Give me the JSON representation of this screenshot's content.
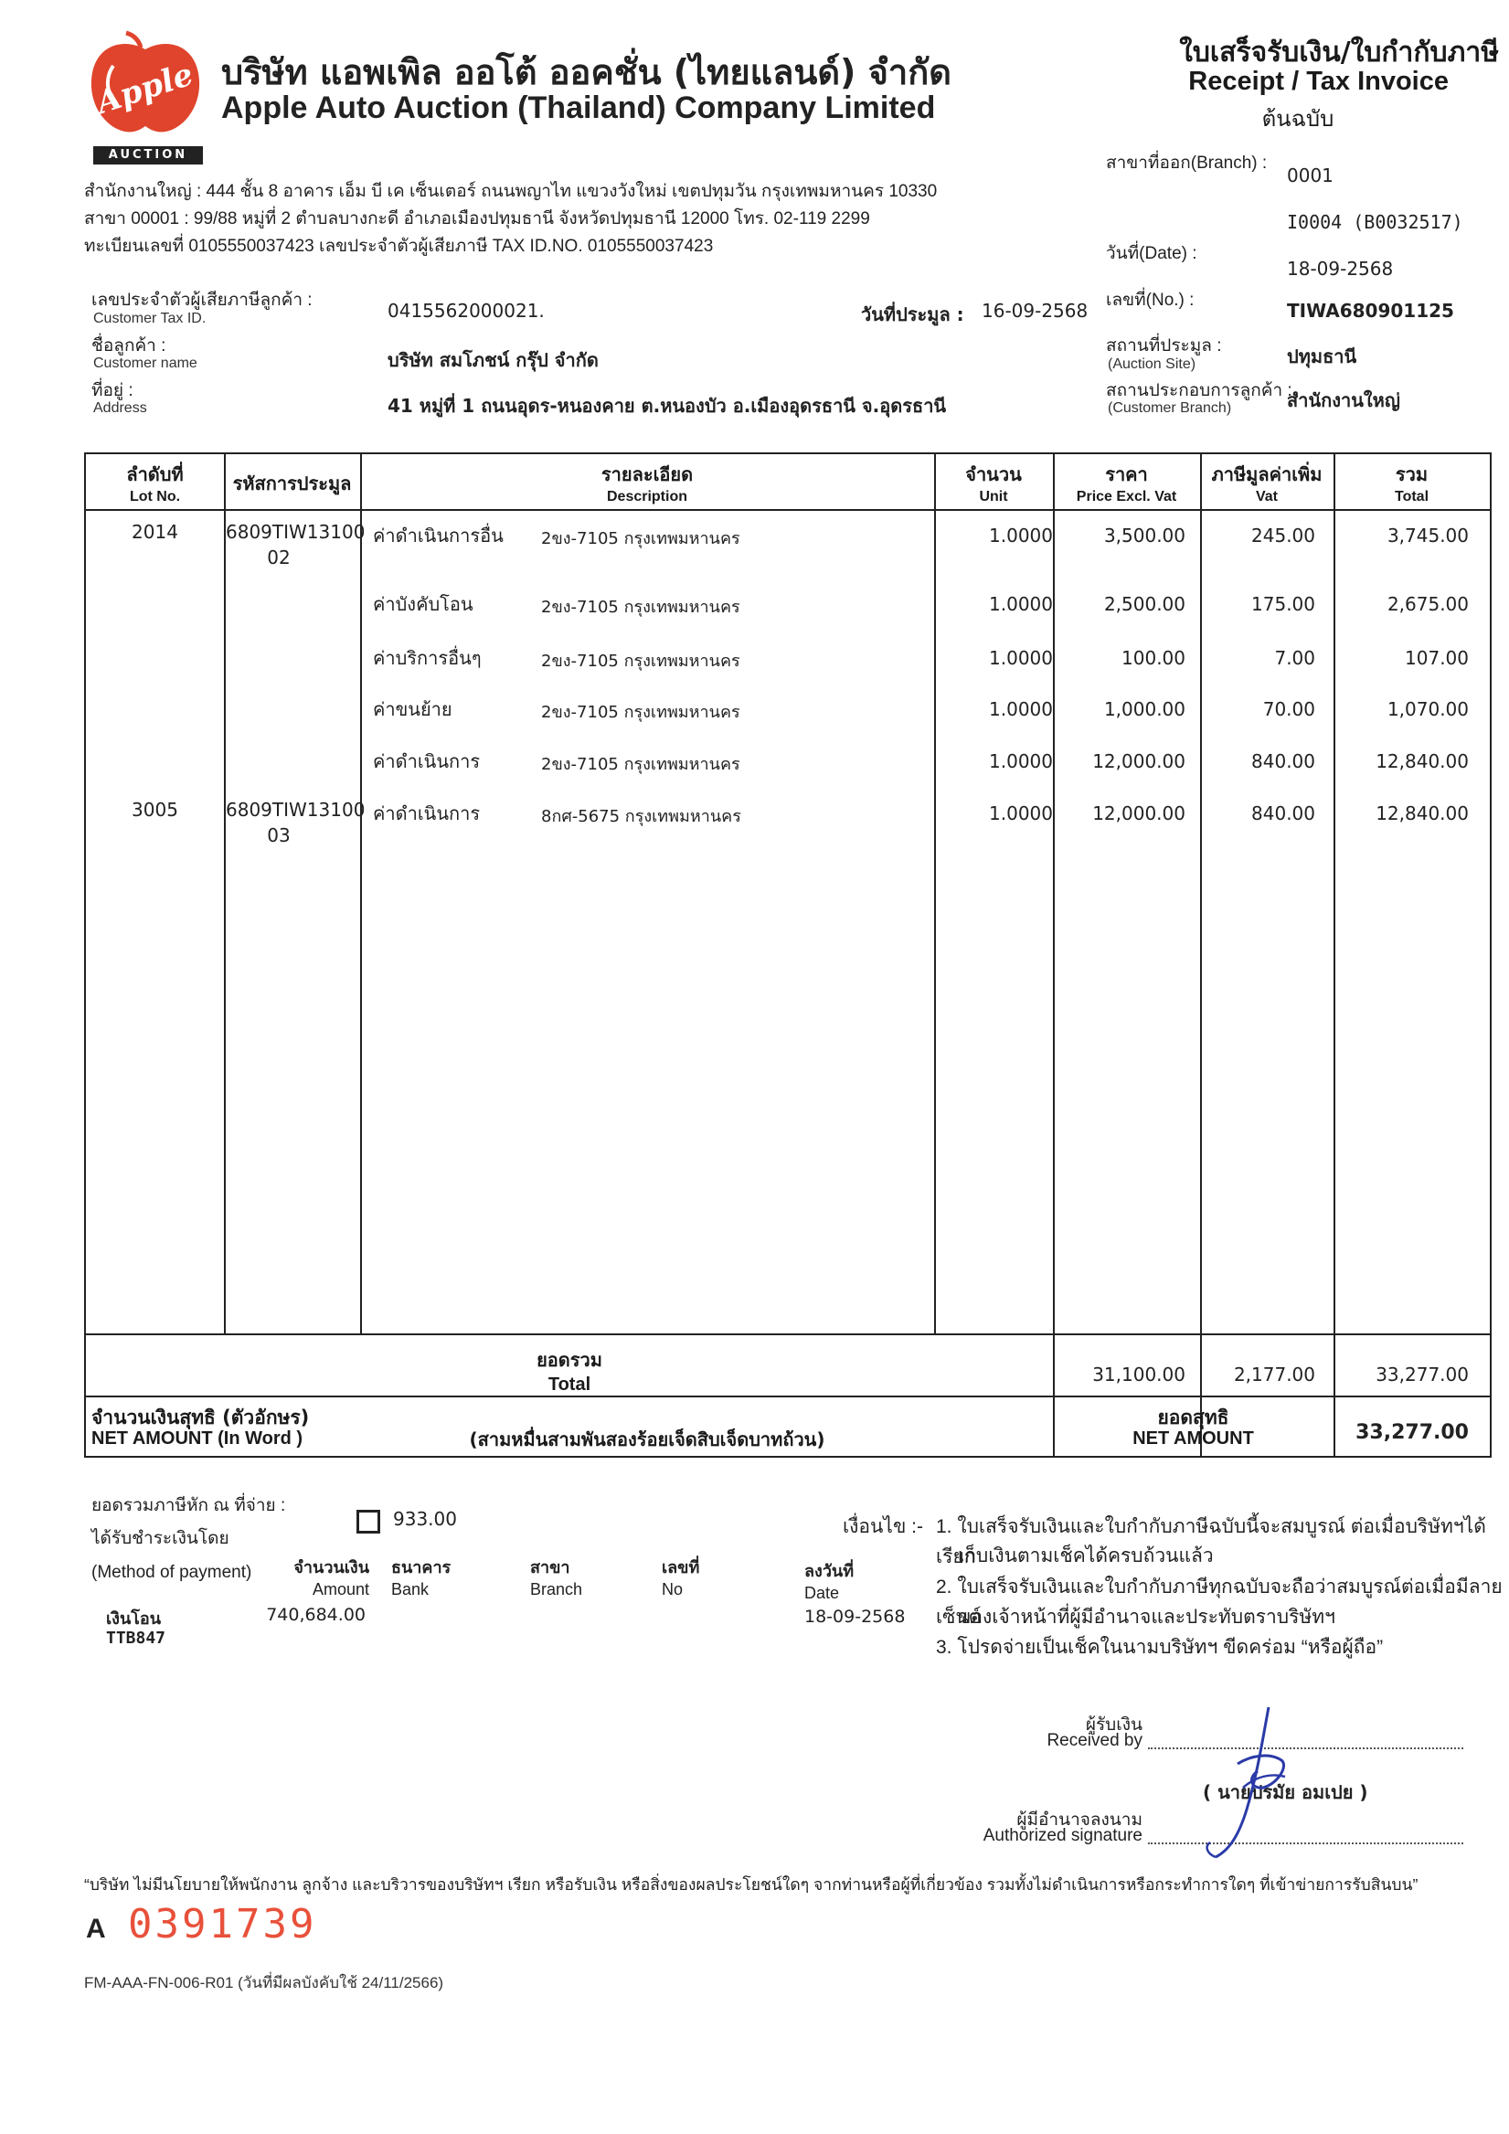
{
  "company": {
    "name_th": "บริษัท แอพเพิล ออโต้ ออคชั่น (ไทยแลนด์) จำกัด",
    "name_en": "Apple Auto Auction (Thailand) Company Limited",
    "logo_text": "Apple",
    "badge_text": "AUCTION",
    "head_office": "สำนักงานใหญ่ : 444 ชั้น 8 อาคาร เอ็ม บี เค เซ็นเตอร์ ถนนพญาไท แขวงวังใหม่ เขตปทุมวัน กรุงเทพมหานคร 10330",
    "branch": "สาขา 00001   : 99/88 หมู่ที่ 2 ตำบลบางกะดี อำเภอเมืองปทุมธานี จังหวัดปทุมธานี 12000 โทร. 02-119 2299",
    "registration": "ทะเบียนเลขที่ 0105550037423 เลขประจำตัวผู้เสียภาษี TAX ID.NO. 0105550037423"
  },
  "document": {
    "title_th": "ใบเสร็จรับเงิน/ใบกำกับภาษี",
    "title_en": "Receipt / Tax Invoice",
    "copy": "ต้นฉบับ"
  },
  "meta": {
    "branch_label": "สาขาที่ออก(Branch) :",
    "branch_value": "0001",
    "branch_code": "I0004  (B0032517)",
    "date_label": "วันที่(Date) :",
    "date_value": "18-09-2568",
    "no_label": "เลขที่(No.) :",
    "no_value": "TIWA680901125",
    "site_label": "สถานที่ประมูล :",
    "site_label_en": "(Auction Site)",
    "site_value": "ปทุมธานี",
    "cust_branch_label": "สถานประกอบการลูกค้า :",
    "cust_branch_label_en": "(Customer Branch)",
    "cust_branch_value": "สำนักงานใหญ่"
  },
  "customer": {
    "tax_label": "เลขประจำตัวผู้เสียภาษีลูกค้า :",
    "tax_label_en": "Customer Tax ID.",
    "tax_value": "0415562000021.",
    "auction_date_label": "วันที่ประมูล :",
    "auction_date_value": "16-09-2568",
    "name_label": "ชื่อลูกค้า :",
    "name_label_en": "Customer name",
    "name_value": "บริษัท สมโภชน์ กรุ๊ป  จำกัด",
    "address_label": "ที่อยู่ :",
    "address_label_en": "Address",
    "address_value": "41   หมู่ที่ 1 ถนนอุดร-หนองคาย  ต.หนองบัว อ.เมืองอุดรธานี จ.อุดรธานี"
  },
  "table": {
    "headers": [
      {
        "th": "ลำดับที่",
        "en": "Lot No."
      },
      {
        "th": "รหัสการประมูล",
        "en": ""
      },
      {
        "th": "รายละเอียด",
        "en": "Description"
      },
      {
        "th": "จำนวน",
        "en": "Unit"
      },
      {
        "th": "ราคา",
        "en": "Price Excl. Vat"
      },
      {
        "th": "ภาษีมูลค่าเพิ่ม",
        "en": "Vat"
      },
      {
        "th": "รวม",
        "en": "Total"
      }
    ],
    "rows": [
      {
        "lot": "2014",
        "code1": "6809TIW13100",
        "code2": "02",
        "desc": "ค่าดำเนินการอื่น",
        "plate": "2ขง-7105 กรุงเทพมหานคร",
        "unit": "1.0000",
        "price": "3,500.00",
        "vat": "245.00",
        "total": "3,745.00"
      },
      {
        "lot": "",
        "code1": "",
        "code2": "",
        "desc": "ค่าบังคับโอน",
        "plate": "2ขง-7105 กรุงเทพมหานคร",
        "unit": "1.0000",
        "price": "2,500.00",
        "vat": "175.00",
        "total": "2,675.00"
      },
      {
        "lot": "",
        "code1": "",
        "code2": "",
        "desc": "ค่าบริการอื่นๆ",
        "plate": "2ขง-7105 กรุงเทพมหานคร",
        "unit": "1.0000",
        "price": "100.00",
        "vat": "7.00",
        "total": "107.00"
      },
      {
        "lot": "",
        "code1": "",
        "code2": "",
        "desc": "ค่าขนย้าย",
        "plate": "2ขง-7105 กรุงเทพมหานคร",
        "unit": "1.0000",
        "price": "1,000.00",
        "vat": "70.00",
        "total": "1,070.00"
      },
      {
        "lot": "",
        "code1": "",
        "code2": "",
        "desc": "ค่าดำเนินการ",
        "plate": "2ขง-7105 กรุงเทพมหานคร",
        "unit": "1.0000",
        "price": "12,000.00",
        "vat": "840.00",
        "total": "12,840.00"
      },
      {
        "lot": "3005",
        "code1": "6809TIW13100",
        "code2": "03",
        "desc": "ค่าดำเนินการ",
        "plate": "8กศ-5675 กรุงเทพมหานคร",
        "unit": "1.0000",
        "price": "12,000.00",
        "vat": "840.00",
        "total": "12,840.00"
      }
    ],
    "total_label_th": "ยอดรวม",
    "total_label_en": "Total",
    "total_price": "31,100.00",
    "total_vat": "2,177.00",
    "total_sum": "33,277.00",
    "net_word_label_th": "จำนวนเงินสุทธิ (ตัวอักษร)",
    "net_word_label_en": "NET AMOUNT (In Word )",
    "net_word_value": "(สามหมื่นสามพันสองร้อยเจ็ดสิบเจ็ดบาทถ้วน)",
    "net_label_th": "ยอดสุทธิ",
    "net_label_en": "NET AMOUNT",
    "net_value": "33,277.00"
  },
  "payment": {
    "withholding_label": "ยอดรวมภาษีหัก ณ ที่จ่าย :",
    "withholding_value": "933.00",
    "received_label": "ได้รับชำระเงินโดย",
    "method_label": "(Method of payment)",
    "amount_th": "จำนวนเงิน",
    "amount_en": "Amount",
    "bank_th": "ธนาคาร",
    "bank_en": "Bank",
    "branch_th": "สาขา",
    "branch_en": "Branch",
    "no_th": "เลขที่",
    "no_en": "No",
    "date_th": "ลงวันที่",
    "date_en": "Date",
    "method_value": "เงินโอน",
    "method_ref": "TTB847",
    "amount_value": "740,684.00",
    "date_value": "18-09-2568"
  },
  "conditions": {
    "label": "เงื่อนไข :-",
    "items": [
      "1. ใบเสร็จรับเงินและใบกำกับภาษีฉบับนี้จะสมบูรณ์ ต่อเมื่อบริษัทฯได้เรียก",
      "เก็บเงินตามเช็คได้ครบถ้วนแล้ว",
      "2. ใบเสร็จรับเงินและใบกำกับภาษีทุกฉบับจะถือว่าสมบูรณ์ต่อเมื่อมีลายเซ็นต์",
      "ของเจ้าหน้าที่ผู้มีอำนาจและประทับตราบริษัทฯ",
      "3. โปรดจ่ายเป็นเช็คในนามบริษัทฯ ขีดคร่อม “หรือผู้ถือ”"
    ]
  },
  "signature": {
    "received_th": "ผู้รับเงิน",
    "received_en": "Received by",
    "name": "( นายปรมัย อมเปย )",
    "auth_th": "ผู้มีอำนาจลงนาม",
    "auth_en": "Authorized signature"
  },
  "footer": {
    "policy": "“บริษัท ไม่มีนโยบายให้พนักงาน ลูกจ้าง และบริวารของบริษัทฯ เรียก หรือรับเงิน หรือสิ่งของผลประโยชน์ใดๆ จากท่านหรือผู้ที่เกี่ยวข้อง รวมทั้งไม่ดำเนินการหรือกระทำการใดๆ ที่เข้าข่ายการรับสินบน”",
    "serial_prefix": "A",
    "serial_no": "0391739",
    "form_code": "FM-AAA-FN-006-R01 (วันที่มีผลบังคับใช้ 24/11/2566)"
  },
  "colors": {
    "logo_red": "#e0442c",
    "serial_red": "#e8503a",
    "signature_blue": "#2a3aa8"
  }
}
